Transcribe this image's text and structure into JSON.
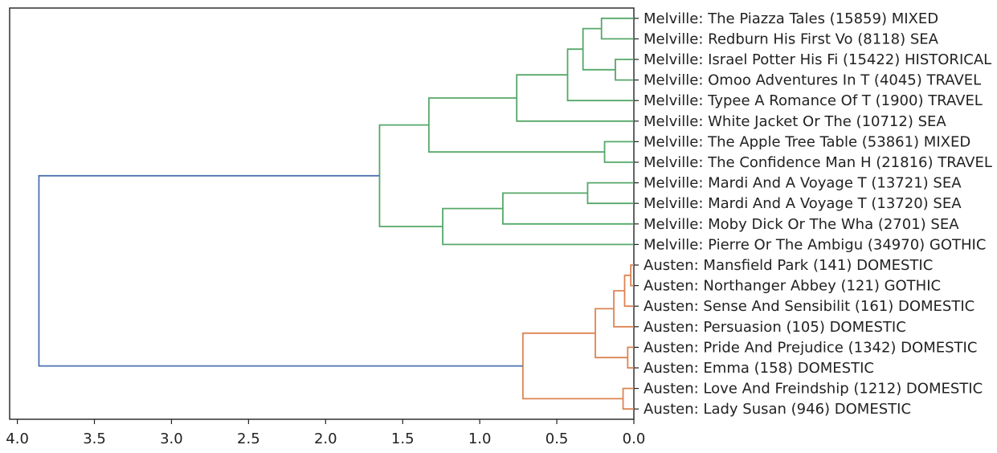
{
  "chart_data": {
    "type": "dendrogram",
    "orientation": "left",
    "title": "",
    "xlabel": "",
    "ylabel": "",
    "xlim": [
      4.05,
      0.0
    ],
    "xticks": [
      4.0,
      3.5,
      3.0,
      2.5,
      2.0,
      1.5,
      1.0,
      0.5,
      0.0
    ],
    "tick_labels": [
      "4.0",
      "3.5",
      "3.0",
      "2.5",
      "2.0",
      "1.5",
      "1.0",
      "0.5",
      "0.0"
    ],
    "grid": false,
    "colors": {
      "melville": "#55a868",
      "austen": "#dd8452",
      "root": "#4c72b0"
    },
    "leaves": [
      "Melville: The Piazza Tales (15859) MIXED",
      "Melville: Redburn His First Vo (8118) SEA",
      "Melville: Israel Potter His Fi (15422) HISTORICAL",
      "Melville: Omoo Adventures In T (4045) TRAVEL",
      "Melville: Typee A Romance Of T (1900) TRAVEL",
      "Melville: White Jacket Or The  (10712) SEA",
      "Melville: The Apple Tree Table (53861) MIXED",
      "Melville: The Confidence Man H (21816) TRAVEL",
      "Melville: Mardi And A Voyage T (13721) SEA",
      "Melville: Mardi And A Voyage T (13720) SEA",
      "Melville: Moby Dick Or The Wha (2701) SEA",
      "Melville: Pierre Or The Ambigu (34970) GOTHIC",
      "Austen: Mansfield Park (141) DOMESTIC",
      "Austen: Northanger Abbey (121) GOTHIC",
      "Austen: Sense And Sensibilit (161) DOMESTIC",
      "Austen: Persuasion (105) DOMESTIC",
      "Austen: Pride And Prejudice (1342) DOMESTIC",
      "Austen: Emma (158) DOMESTIC",
      "Austen: Love And Freindship  (1212) DOMESTIC",
      "Austen: Lady Susan (946) DOMESTIC"
    ],
    "merges": [
      {
        "left": 0,
        "right": 1,
        "distance": 0.21,
        "color": "melville"
      },
      {
        "left": 2,
        "right": 3,
        "distance": 0.12,
        "color": "melville"
      },
      {
        "left": 20,
        "right": 21,
        "distance": 0.33,
        "color": "melville"
      },
      {
        "left": 22,
        "right": 4,
        "distance": 0.43,
        "color": "melville"
      },
      {
        "left": 23,
        "right": 5,
        "distance": 0.76,
        "color": "melville"
      },
      {
        "left": 6,
        "right": 7,
        "distance": 0.19,
        "color": "melville"
      },
      {
        "left": 24,
        "right": 25,
        "distance": 1.33,
        "color": "melville"
      },
      {
        "left": 8,
        "right": 9,
        "distance": 0.3,
        "color": "melville"
      },
      {
        "left": 27,
        "right": 10,
        "distance": 0.85,
        "color": "melville"
      },
      {
        "left": 28,
        "right": 11,
        "distance": 1.24,
        "color": "melville"
      },
      {
        "left": 26,
        "right": 29,
        "distance": 1.65,
        "color": "melville"
      },
      {
        "left": 12,
        "right": 13,
        "distance": 0.02,
        "color": "austen"
      },
      {
        "left": 31,
        "right": 14,
        "distance": 0.06,
        "color": "austen"
      },
      {
        "left": 32,
        "right": 15,
        "distance": 0.13,
        "color": "austen"
      },
      {
        "left": 16,
        "right": 17,
        "distance": 0.04,
        "color": "austen"
      },
      {
        "left": 33,
        "right": 34,
        "distance": 0.25,
        "color": "austen"
      },
      {
        "left": 18,
        "right": 19,
        "distance": 0.07,
        "color": "austen"
      },
      {
        "left": 35,
        "right": 36,
        "distance": 0.72,
        "color": "austen"
      },
      {
        "left": 30,
        "right": 37,
        "distance": 3.86,
        "color": "root"
      }
    ]
  }
}
